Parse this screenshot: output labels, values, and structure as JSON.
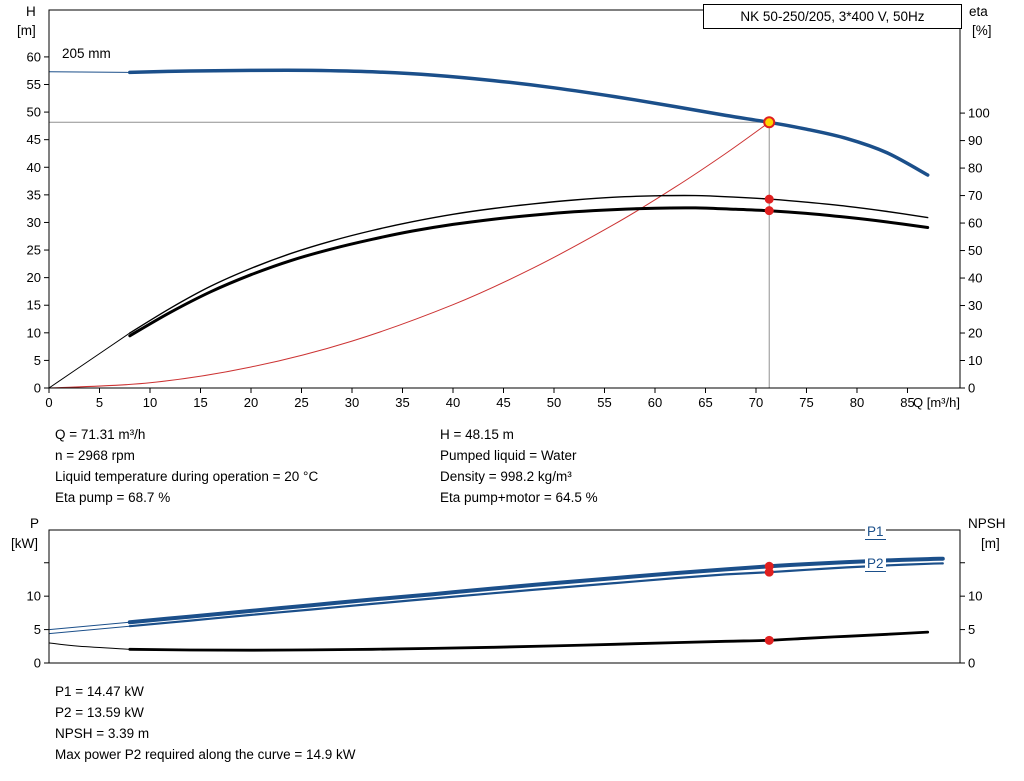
{
  "header_box": {
    "label": "NK 50-250/205, 3*400 V, 50Hz"
  },
  "top_chart": {
    "y_left_title": "H",
    "y_left_unit": "[m]",
    "y_right_title": "eta",
    "y_right_unit": "[%]",
    "impeller": "205 mm"
  },
  "bottom_chart": {
    "y_left_title": "P",
    "y_left_unit": "[kW]",
    "y_right_title": "NPSH",
    "y_right_unit": "[m]",
    "p1_label": "P1",
    "p2_label": "P2"
  },
  "info_top": {
    "col1": [
      "Q = 71.31 m³/h",
      "n = 2968 rpm",
      "Liquid temperature during operation = 20 °C",
      "Eta pump = 68.7 %"
    ],
    "col2": [
      "H = 48.15 m",
      "Pumped liquid = Water",
      "Density = 998.2 kg/m³",
      "Eta pump+motor = 64.5 %"
    ]
  },
  "info_bottom": [
    "P1 = 14.47 kW",
    "P2 = 13.59 kW",
    "NPSH = 3.39 m",
    "Max power P2 required along the curve = 14.9 kW"
  ],
  "colors": {
    "curve_blue": "#1b4f8a",
    "curve_black": "#000000",
    "system_red": "#cc3333",
    "marker_red": "#e02020",
    "marker_yellow": "#ffd500",
    "guide_gray": "#909090",
    "label_blue": "#1b4f8a"
  },
  "chart_data": [
    {
      "type": "line",
      "name": "head-efficiency-chart",
      "title": "NK 50-250/205, 3*400 V, 50Hz",
      "x_axis": {
        "label": "Q [m³/h]",
        "min": 0,
        "max": 90.2,
        "ticks": [
          {
            "v": 0,
            "l": "0"
          },
          {
            "v": 5,
            "l": "5"
          },
          {
            "v": 10,
            "l": "10"
          },
          {
            "v": 15,
            "l": "15"
          },
          {
            "v": 20,
            "l": "20"
          },
          {
            "v": 25,
            "l": "25"
          },
          {
            "v": 30,
            "l": "30"
          },
          {
            "v": 35,
            "l": "35"
          },
          {
            "v": 40,
            "l": "40"
          },
          {
            "v": 45,
            "l": "45"
          },
          {
            "v": 50,
            "l": "50"
          },
          {
            "v": 55,
            "l": "55"
          },
          {
            "v": 60,
            "l": "60"
          },
          {
            "v": 65,
            "l": "65"
          },
          {
            "v": 70,
            "l": "70"
          },
          {
            "v": 75,
            "l": "75"
          },
          {
            "v": 80,
            "l": "80"
          },
          {
            "v": 85,
            "l": "85"
          }
        ]
      },
      "y_left": {
        "label": "H [m]",
        "min": 0,
        "max": 68.5,
        "ticks": [
          {
            "v": 0,
            "l": "0"
          },
          {
            "v": 5,
            "l": "5"
          },
          {
            "v": 10,
            "l": "10"
          },
          {
            "v": 15,
            "l": "15"
          },
          {
            "v": 20,
            "l": "20"
          },
          {
            "v": 25,
            "l": "25"
          },
          {
            "v": 30,
            "l": "30"
          },
          {
            "v": 35,
            "l": "35"
          },
          {
            "v": 40,
            "l": "40"
          },
          {
            "v": 45,
            "l": "45"
          },
          {
            "v": 50,
            "l": "50"
          },
          {
            "v": 55,
            "l": "55"
          },
          {
            "v": 60,
            "l": "60"
          }
        ]
      },
      "y_right": {
        "label": "eta [%]",
        "min": 0,
        "max": 137.5,
        "ticks": [
          {
            "v": 0,
            "l": "0"
          },
          {
            "v": 10,
            "l": "10"
          },
          {
            "v": 20,
            "l": "20"
          },
          {
            "v": 30,
            "l": "30"
          },
          {
            "v": 40,
            "l": "40"
          },
          {
            "v": 50,
            "l": "50"
          },
          {
            "v": 60,
            "l": "60"
          },
          {
            "v": 70,
            "l": "70"
          },
          {
            "v": 80,
            "l": "80"
          },
          {
            "v": 90,
            "l": "90"
          },
          {
            "v": 100,
            "l": "100"
          }
        ]
      },
      "series": [
        {
          "name": "system-curve",
          "axis": "left",
          "color": "#cc3333",
          "width": 1,
          "points": [
            [
              0,
              0
            ],
            [
              10,
              0.95
            ],
            [
              20,
              3.8
            ],
            [
              30,
              8.5
            ],
            [
              40,
              15.1
            ],
            [
              48,
              21.8
            ],
            [
              56,
              29.7
            ],
            [
              62,
              36.4
            ],
            [
              67,
              42.5
            ],
            [
              71.31,
              48.15
            ]
          ]
        },
        {
          "name": "eta-pump-curve",
          "axis": "right",
          "color": "#000000",
          "width": 1.4,
          "lead": [
            [
              0,
              0
            ],
            [
              4,
              10
            ],
            [
              8,
              20
            ]
          ],
          "points": [
            [
              8,
              20
            ],
            [
              12,
              29
            ],
            [
              16,
              37
            ],
            [
              20,
              43.5
            ],
            [
              24,
              49
            ],
            [
              28,
              53.5
            ],
            [
              32,
              57.3
            ],
            [
              36,
              60.5
            ],
            [
              40,
              63.2
            ],
            [
              44,
              65.3
            ],
            [
              48,
              67.0
            ],
            [
              52,
              68.4
            ],
            [
              56,
              69.4
            ],
            [
              60,
              69.9
            ],
            [
              64,
              70.0
            ],
            [
              68,
              69.4
            ],
            [
              71.31,
              68.7
            ],
            [
              75,
              67.6
            ],
            [
              79,
              66.1
            ],
            [
              83,
              64.2
            ],
            [
              87,
              62.0
            ]
          ]
        },
        {
          "name": "eta-pump-motor-curve",
          "axis": "right",
          "color": "#000000",
          "width": 3,
          "points": [
            [
              8,
              19
            ],
            [
              12,
              27.5
            ],
            [
              16,
              35
            ],
            [
              20,
              41.2
            ],
            [
              24,
              46.4
            ],
            [
              28,
              50.6
            ],
            [
              32,
              54.1
            ],
            [
              36,
              57.1
            ],
            [
              40,
              59.5
            ],
            [
              44,
              61.4
            ],
            [
              48,
              62.9
            ],
            [
              52,
              64.1
            ],
            [
              56,
              64.9
            ],
            [
              60,
              65.4
            ],
            [
              64,
              65.5
            ],
            [
              68,
              65.0
            ],
            [
              71.31,
              64.5
            ],
            [
              75,
              63.5
            ],
            [
              79,
              62.1
            ],
            [
              83,
              60.4
            ],
            [
              87,
              58.4
            ]
          ]
        },
        {
          "name": "head-curve",
          "axis": "left",
          "color": "#1b4f8a",
          "width": 3.5,
          "lead": [
            [
              0,
              57.3
            ],
            [
              8,
              57.2
            ]
          ],
          "points": [
            [
              8,
              57.2
            ],
            [
              14,
              57.45
            ],
            [
              20,
              57.55
            ],
            [
              26,
              57.55
            ],
            [
              32,
              57.3
            ],
            [
              38,
              56.7
            ],
            [
              44,
              55.7
            ],
            [
              50,
              54.4
            ],
            [
              56,
              52.8
            ],
            [
              62,
              51.0
            ],
            [
              67,
              49.4
            ],
            [
              71.31,
              48.15
            ],
            [
              75,
              46.9
            ],
            [
              79,
              45.2
            ],
            [
              83,
              42.6
            ],
            [
              87,
              38.6
            ]
          ]
        }
      ],
      "guides": [
        {
          "dir": "h",
          "axis": "left",
          "v": 48.15,
          "q0": 0,
          "q1": 71.31
        },
        {
          "dir": "v",
          "axis": "left",
          "q": 71.31,
          "v0": 0,
          "v1": 48.15
        }
      ],
      "markers": [
        {
          "name": "eta-pump-point",
          "axis": "right",
          "q": 71.31,
          "v": 68.7,
          "style": "red"
        },
        {
          "name": "eta-pump-motor-point",
          "axis": "right",
          "q": 71.31,
          "v": 64.5,
          "style": "red"
        },
        {
          "name": "duty-point",
          "axis": "left",
          "q": 71.31,
          "v": 48.15,
          "style": "duty"
        }
      ]
    },
    {
      "type": "line",
      "name": "power-npsh-chart",
      "x_axis": {
        "label": "",
        "min": 0,
        "max": 90.2,
        "ticks": []
      },
      "y_left": {
        "label": "P [kW]",
        "min": 0,
        "max": 19.9,
        "ticks": [
          {
            "v": 0,
            "l": "0"
          },
          {
            "v": 5,
            "l": "5"
          },
          {
            "v": 10,
            "l": "10"
          },
          {
            "v": 15,
            "l": ""
          }
        ]
      },
      "y_right": {
        "label": "NPSH [m]",
        "min": 0,
        "max": 19.9,
        "ticks": [
          {
            "v": 0,
            "l": "0"
          },
          {
            "v": 5,
            "l": "5"
          },
          {
            "v": 10,
            "l": "10"
          },
          {
            "v": 15,
            "l": ""
          }
        ]
      },
      "series": [
        {
          "name": "npsh-curve",
          "axis": "right",
          "color": "#000000",
          "width": 2.8,
          "lead": [
            [
              0,
              3.0
            ],
            [
              3,
              2.5
            ],
            [
              8,
              2.05
            ]
          ],
          "points": [
            [
              8,
              2.05
            ],
            [
              14,
              1.95
            ],
            [
              20,
              1.92
            ],
            [
              26,
              1.96
            ],
            [
              32,
              2.05
            ],
            [
              38,
              2.18
            ],
            [
              44,
              2.35
            ],
            [
              50,
              2.56
            ],
            [
              56,
              2.8
            ],
            [
              62,
              3.05
            ],
            [
              67,
              3.25
            ],
            [
              71.31,
              3.39
            ],
            [
              75,
              3.7
            ],
            [
              79,
              4.0
            ],
            [
              83,
              4.3
            ],
            [
              87,
              4.62
            ]
          ]
        },
        {
          "name": "p2-curve",
          "axis": "left",
          "color": "#1b4f8a",
          "width": 2.2,
          "lead": [
            [
              0,
              4.4
            ],
            [
              8,
              5.5
            ]
          ],
          "points": [
            [
              8,
              5.5
            ],
            [
              14,
              6.35
            ],
            [
              20,
              7.2
            ],
            [
              26,
              8.0
            ],
            [
              32,
              8.85
            ],
            [
              38,
              9.65
            ],
            [
              44,
              10.45
            ],
            [
              50,
              11.2
            ],
            [
              56,
              11.95
            ],
            [
              62,
              12.7
            ],
            [
              67,
              13.25
            ],
            [
              71.31,
              13.59
            ],
            [
              75,
              13.95
            ],
            [
              79,
              14.3
            ],
            [
              83,
              14.6
            ],
            [
              87,
              14.85
            ],
            [
              88.5,
              14.9
            ]
          ]
        },
        {
          "name": "p1-curve",
          "axis": "left",
          "color": "#1b4f8a",
          "width": 4,
          "lead": [
            [
              0,
              5.0
            ],
            [
              8,
              6.1
            ]
          ],
          "points": [
            [
              8,
              6.1
            ],
            [
              14,
              6.95
            ],
            [
              20,
              7.8
            ],
            [
              26,
              8.65
            ],
            [
              32,
              9.5
            ],
            [
              38,
              10.3
            ],
            [
              44,
              11.15
            ],
            [
              50,
              11.95
            ],
            [
              56,
              12.7
            ],
            [
              62,
              13.45
            ],
            [
              67,
              14.0
            ],
            [
              71.31,
              14.47
            ],
            [
              75,
              14.8
            ],
            [
              79,
              15.1
            ],
            [
              83,
              15.35
            ],
            [
              87,
              15.55
            ],
            [
              88.5,
              15.6
            ]
          ]
        }
      ],
      "guides": [],
      "markers": [
        {
          "name": "p1-point",
          "axis": "left",
          "q": 71.31,
          "v": 14.47,
          "style": "red"
        },
        {
          "name": "p2-point",
          "axis": "left",
          "q": 71.31,
          "v": 13.59,
          "style": "red"
        },
        {
          "name": "npsh-point",
          "axis": "right",
          "q": 71.31,
          "v": 3.39,
          "style": "red"
        }
      ]
    }
  ]
}
